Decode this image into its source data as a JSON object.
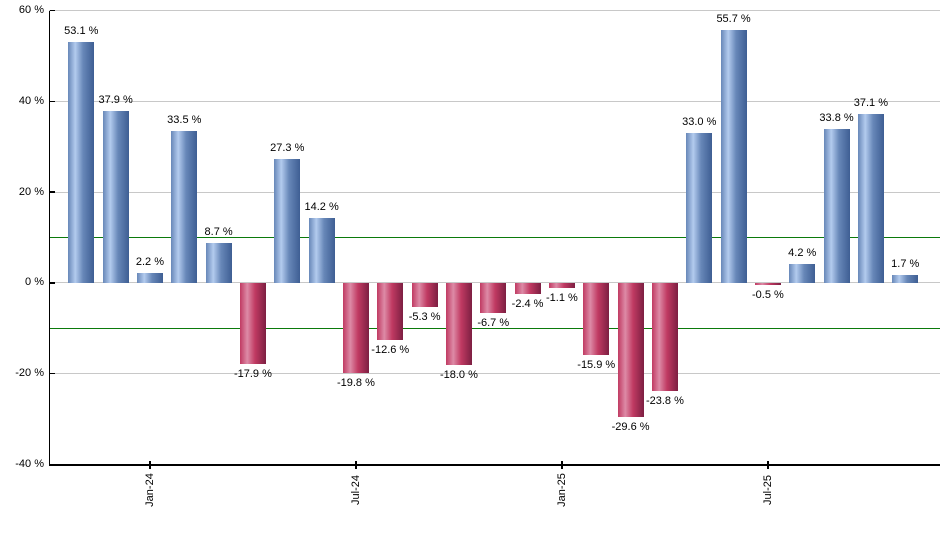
{
  "chart_data": {
    "type": "bar",
    "title": "",
    "unit": "%",
    "values": [
      53.1,
      37.9,
      2.2,
      33.5,
      8.7,
      -17.9,
      27.3,
      14.2,
      -19.8,
      -12.6,
      -5.3,
      -18.0,
      -6.7,
      -2.4,
      -1.1,
      -15.9,
      -29.6,
      -23.8,
      33.0,
      55.7,
      -0.5,
      4.2,
      33.8,
      37.1,
      1.7
    ],
    "bar_labels": [
      "53.1 %",
      "37.9 %",
      "2.2 %",
      "33.5 %",
      "8.7 %",
      "-17.9 %",
      "27.3 %",
      "14.2 %",
      "-19.8 %",
      "-12.6 %",
      "-5.3 %",
      "-18.0 %",
      "-6.7 %",
      "-2.4 %",
      "-1.1 %",
      "-15.9 %",
      "-29.6 %",
      "-23.8 %",
      "33.0 %",
      "55.7 %",
      "-0.5 %",
      "4.2 %",
      "33.8 %",
      "37.1 %",
      "1.7 %"
    ],
    "x_ticks": [
      {
        "bar_index": 2,
        "label": "Jan-24"
      },
      {
        "bar_index": 8,
        "label": "Jul-24"
      },
      {
        "bar_index": 14,
        "label": "Jan-25"
      },
      {
        "bar_index": 20,
        "label": "Jul-25"
      }
    ],
    "y_ticks": [
      {
        "value": 60,
        "label": "60 %"
      },
      {
        "value": 40,
        "label": "40 %"
      },
      {
        "value": 20,
        "label": "20 %"
      },
      {
        "value": 0,
        "label": "0 %"
      },
      {
        "value": -20,
        "label": "-20 %"
      },
      {
        "value": -40,
        "label": "-40 %"
      }
    ],
    "ylim": [
      -40,
      60
    ],
    "reference_lines": [
      10,
      -10
    ],
    "grid": true,
    "legend": false,
    "colors": {
      "positive_bar_main": "#6787b8",
      "positive_bar_highlight": "#b3cbee",
      "positive_bar_edge": "#3e5e93",
      "negative_bar_main": "#c03a62",
      "negative_bar_highlight": "#dd8aa6",
      "negative_bar_edge": "#7d1f42",
      "reference_line": "#0b7a0b",
      "gridline": "#c8c8c8",
      "axis": "#000000",
      "label_text": "#000000"
    }
  }
}
